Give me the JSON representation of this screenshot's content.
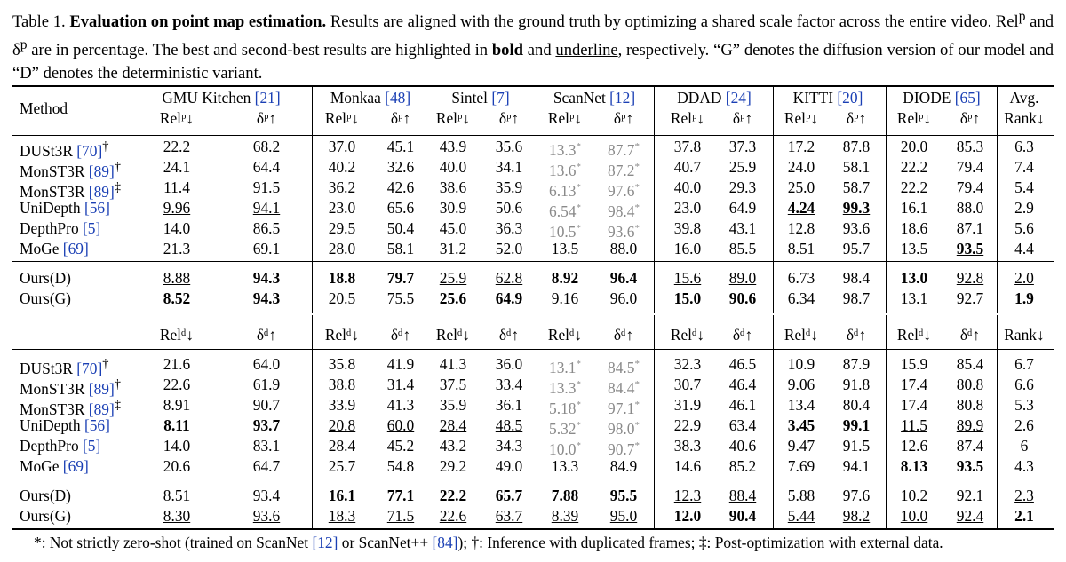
{
  "caption": {
    "label": "Table 1.",
    "title": "Evaluation on point map estimation.",
    "text1": " Results are aligned with the ground truth by optimizing a shared scale factor across the entire video. Rel",
    "text2": " and δ",
    "text3": " are in percentage. The best and second-best results are highlighted in ",
    "bold_word": "bold",
    "text4": " and ",
    "underline_word": "underline",
    "text5": ", respectively. “G” denotes the diffusion version of our model and “D” denotes the deterministic variant.",
    "sup_p": "p"
  },
  "header": {
    "method": "Method",
    "datasets": [
      {
        "name": "GMU Kitchen",
        "ref": "[21]"
      },
      {
        "name": "Monkaa",
        "ref": "[48]"
      },
      {
        "name": "Sintel",
        "ref": "[7]"
      },
      {
        "name": "ScanNet",
        "ref": "[12]"
      },
      {
        "name": "DDAD",
        "ref": "[24]"
      },
      {
        "name": "KITTI",
        "ref": "[20]"
      },
      {
        "name": "DIODE",
        "ref": "[65]"
      }
    ],
    "avg": "Avg.",
    "rank": "Rank↓",
    "rel_p": "Relᵖ↓",
    "delta_p": "δᵖ↑",
    "rel_d": "Relᵈ↓",
    "delta_d": "δᵈ↑"
  },
  "section_p": {
    "baselines": [
      {
        "method": "DUSt3R",
        "ref": "[70]",
        "mark": "†",
        "values": [
          "22.2",
          "68.2",
          "37.0",
          "45.1",
          "43.9",
          "35.6",
          "13.3*",
          "87.7*",
          "37.8",
          "37.3",
          "17.2",
          "87.8",
          "20.0",
          "85.3",
          "6.3"
        ]
      },
      {
        "method": "MonST3R",
        "ref": "[89]",
        "mark": "†",
        "values": [
          "24.1",
          "64.4",
          "40.2",
          "32.6",
          "40.0",
          "34.1",
          "13.6*",
          "87.2*",
          "40.7",
          "25.9",
          "24.0",
          "58.1",
          "22.2",
          "79.4",
          "7.4"
        ]
      },
      {
        "method": "MonST3R",
        "ref": "[89]",
        "mark": "‡",
        "values": [
          "11.4",
          "91.5",
          "36.2",
          "42.6",
          "38.6",
          "35.9",
          "6.13*",
          "97.6*",
          "40.0",
          "29.3",
          "25.0",
          "58.7",
          "22.2",
          "79.4",
          "5.4"
        ]
      },
      {
        "method": "UniDepth",
        "ref": "[56]",
        "mark": "",
        "values": [
          "9.96",
          "94.1",
          "23.0",
          "65.6",
          "30.9",
          "50.6",
          "6.54*",
          "98.4*",
          "23.0",
          "64.9",
          "4.24",
          "99.3",
          "16.1",
          "88.0",
          "2.9"
        ]
      },
      {
        "method": "DepthPro",
        "ref": "[5]",
        "mark": "",
        "values": [
          "14.0",
          "86.5",
          "29.5",
          "50.4",
          "45.0",
          "36.3",
          "10.5*",
          "93.6*",
          "39.8",
          "43.1",
          "12.8",
          "93.6",
          "18.6",
          "87.1",
          "5.6"
        ]
      },
      {
        "method": "MoGe",
        "ref": "[69]",
        "mark": "",
        "values": [
          "21.3",
          "69.1",
          "28.0",
          "58.1",
          "31.2",
          "52.0",
          "13.5",
          "88.0",
          "16.0",
          "85.5",
          "8.51",
          "95.7",
          "13.5",
          "93.5",
          "4.4"
        ]
      }
    ],
    "ours": [
      {
        "method": "Ours(D)",
        "values": [
          "8.88",
          "94.3",
          "18.8",
          "79.7",
          "25.9",
          "62.8",
          "8.92",
          "96.4",
          "15.6",
          "89.0",
          "6.73",
          "98.4",
          "13.0",
          "92.8",
          "2.0"
        ]
      },
      {
        "method": "Ours(G)",
        "values": [
          "8.52",
          "94.3",
          "20.5",
          "75.5",
          "25.6",
          "64.9",
          "9.16",
          "96.0",
          "15.0",
          "90.6",
          "6.34",
          "98.7",
          "13.1",
          "92.7",
          "1.9"
        ]
      }
    ]
  },
  "section_d": {
    "baselines": [
      {
        "method": "DUSt3R",
        "ref": "[70]",
        "mark": "†",
        "values": [
          "21.6",
          "64.0",
          "35.8",
          "41.9",
          "41.3",
          "36.0",
          "13.1*",
          "84.5*",
          "32.3",
          "46.5",
          "10.9",
          "87.9",
          "15.9",
          "85.4",
          "6.7"
        ]
      },
      {
        "method": "MonST3R",
        "ref": "[89]",
        "mark": "†",
        "values": [
          "22.6",
          "61.9",
          "38.8",
          "31.4",
          "37.5",
          "33.4",
          "13.3*",
          "84.4*",
          "30.7",
          "46.4",
          "9.06",
          "91.8",
          "17.4",
          "80.8",
          "6.6"
        ]
      },
      {
        "method": "MonST3R",
        "ref": "[89]",
        "mark": "‡",
        "values": [
          "8.91",
          "90.7",
          "33.9",
          "41.3",
          "35.9",
          "36.1",
          "5.18*",
          "97.1*",
          "31.9",
          "46.1",
          "13.4",
          "80.4",
          "17.4",
          "80.8",
          "5.3"
        ]
      },
      {
        "method": "UniDepth",
        "ref": "[56]",
        "mark": "",
        "values": [
          "8.11",
          "93.7",
          "20.8",
          "60.0",
          "28.4",
          "48.5",
          "5.32*",
          "98.0*",
          "22.9",
          "63.4",
          "3.45",
          "99.1",
          "11.5",
          "89.9",
          "2.6"
        ]
      },
      {
        "method": "DepthPro",
        "ref": "[5]",
        "mark": "",
        "values": [
          "14.0",
          "83.1",
          "28.4",
          "45.2",
          "43.2",
          "34.3",
          "10.0*",
          "90.7*",
          "38.3",
          "40.6",
          "9.47",
          "91.5",
          "12.6",
          "87.4",
          "6"
        ]
      },
      {
        "method": "MoGe",
        "ref": "[69]",
        "mark": "",
        "values": [
          "20.6",
          "64.7",
          "25.7",
          "54.8",
          "29.2",
          "49.0",
          "13.3",
          "84.9",
          "14.6",
          "85.2",
          "7.69",
          "94.1",
          "8.13",
          "93.5",
          "4.3"
        ]
      }
    ],
    "ours": [
      {
        "method": "Ours(D)",
        "values": [
          "8.51",
          "93.4",
          "16.1",
          "77.1",
          "22.2",
          "65.7",
          "7.88",
          "95.5",
          "12.3",
          "88.4",
          "5.88",
          "97.6",
          "10.2",
          "92.1",
          "2.3"
        ]
      },
      {
        "method": "Ours(G)",
        "values": [
          "8.30",
          "93.6",
          "18.3",
          "71.5",
          "22.6",
          "63.7",
          "8.39",
          "95.0",
          "12.0",
          "90.4",
          "5.44",
          "98.2",
          "10.0",
          "92.4",
          "2.1"
        ]
      }
    ]
  },
  "footnote": {
    "star": "*: Not strictly zero-shot (trained on ScanNet ",
    "ref1": "[12]",
    "mid": " or ScanNet++ ",
    "ref2": "[84]",
    "dagger": "); †: Inference with duplicated frames; ‡: Post-optimization with external data."
  },
  "styles": {
    "bold": {
      "p": [
        "0:12:1",
        "0:12:2",
        "0:12:3",
        "0:13:0",
        "0:13:4",
        "0:13:5",
        "0:13:6",
        "0:13:7",
        "0:13:9",
        "0:9:10",
        "0:9:11",
        "0:11:13",
        "0:12:6",
        "0:12:7",
        "0:12:12",
        "0:13:14"
      ],
      "d": [
        "1:9:0",
        "1:9:1",
        "1:12:2",
        "1:12:3",
        "1:12:4",
        "1:12:5",
        "1:12:6",
        "1:12:7",
        "1:13:8",
        "1:13:9",
        "1:9:10",
        "1:9:11",
        "1:11:12",
        "1:11:13",
        "1:13:14"
      ]
    }
  }
}
